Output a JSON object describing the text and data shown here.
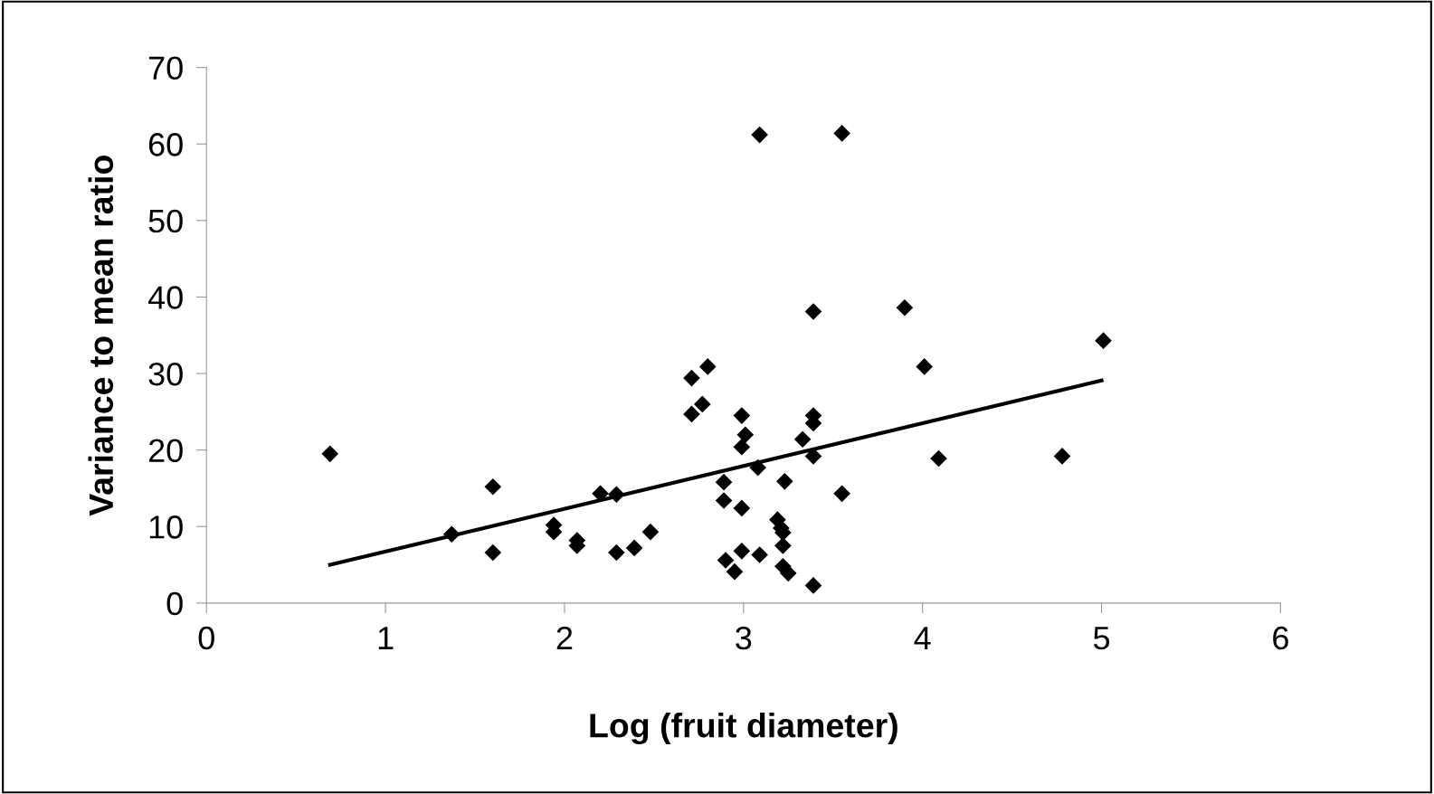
{
  "chart_data": {
    "type": "scatter",
    "xlabel": "Log (fruit diameter)",
    "ylabel": "Variance to mean ratio",
    "xlim": [
      0,
      6
    ],
    "xticks": [
      0,
      1,
      2,
      3,
      4,
      5,
      6
    ],
    "ylim": [
      0,
      70
    ],
    "yticks": [
      0,
      10,
      20,
      30,
      40,
      50,
      60,
      70
    ],
    "grid": false,
    "legend": false,
    "series": [
      {
        "color": "#000000",
        "marker": "diamond",
        "x": [
          0.69,
          1.37,
          1.6,
          1.6,
          1.94,
          1.94,
          2.07,
          2.07,
          2.2,
          2.29,
          2.29,
          2.39,
          2.48,
          2.71,
          2.71,
          2.77,
          2.8,
          2.89,
          2.89,
          2.9,
          2.95,
          2.99,
          3.01,
          2.99,
          2.99,
          2.99,
          3.08,
          3.09,
          3.09,
          3.19,
          3.21,
          3.22,
          3.22,
          3.22,
          3.25,
          3.23,
          3.33,
          3.39,
          3.39,
          3.39,
          3.39,
          3.39,
          3.55,
          3.55,
          3.9,
          4.01,
          4.09,
          4.78,
          5.01
        ],
        "values": [
          19.5,
          9.0,
          15.2,
          6.6,
          10.2,
          9.3,
          8.2,
          7.5,
          14.3,
          14.2,
          6.6,
          7.2,
          9.3,
          29.4,
          24.7,
          26.0,
          30.9,
          15.8,
          13.4,
          5.6,
          4.1,
          24.5,
          22.0,
          20.4,
          12.4,
          6.8,
          17.7,
          61.2,
          6.3,
          10.9,
          9.8,
          9.2,
          7.5,
          4.8,
          3.9,
          15.9,
          21.4,
          38.1,
          24.5,
          23.5,
          19.2,
          2.3,
          61.4,
          14.3,
          38.6,
          30.9,
          18.9,
          19.2,
          34.3
        ]
      },
      {
        "type": "line",
        "color": "#000000",
        "marker": "none",
        "line_style": "solid",
        "x": [
          0.69,
          5.0
        ],
        "values": [
          5.0,
          29.1
        ]
      }
    ]
  }
}
